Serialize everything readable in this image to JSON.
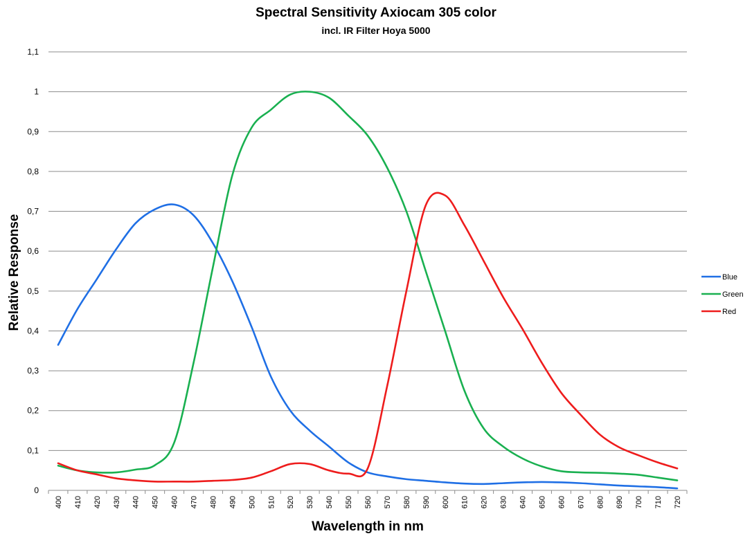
{
  "chart_data": {
    "type": "line",
    "title": "Spectral Sensitivity Axiocam 305 color",
    "subtitle": "incl. IR Filter Hoya 5000",
    "xlabel": "Wavelength in nm",
    "ylabel": "Relative Response",
    "x": [
      400,
      410,
      420,
      430,
      440,
      450,
      460,
      470,
      480,
      490,
      500,
      510,
      520,
      530,
      540,
      550,
      560,
      570,
      580,
      590,
      600,
      610,
      620,
      630,
      640,
      650,
      660,
      670,
      680,
      690,
      700,
      710,
      720
    ],
    "x_tick_labels": [
      "400",
      "410",
      "420",
      "430",
      "440",
      "450",
      "460",
      "470",
      "480",
      "490",
      "500",
      "510",
      "520",
      "530",
      "540",
      "550",
      "560",
      "570",
      "580",
      "590",
      "600",
      "610",
      "620",
      "630",
      "640",
      "650",
      "660",
      "670",
      "680",
      "690",
      "700",
      "710",
      "720"
    ],
    "xlim": [
      400,
      720
    ],
    "ylim": [
      0,
      1.1
    ],
    "y_ticks": [
      0,
      0.1,
      0.2,
      0.3,
      0.4,
      0.5,
      0.6,
      0.7,
      0.8,
      0.9,
      1.0,
      1.1
    ],
    "y_tick_labels": [
      "0",
      "0,1",
      "0,2",
      "0,3",
      "0,4",
      "0,5",
      "0,6",
      "0,7",
      "0,8",
      "0,9",
      "1",
      "1,1"
    ],
    "grid": "horizontal",
    "legend_position": "right",
    "series": [
      {
        "name": "Blue",
        "color": "#1f6fe5",
        "values": [
          0.365,
          0.455,
          0.53,
          0.605,
          0.67,
          0.705,
          0.717,
          0.69,
          0.62,
          0.525,
          0.41,
          0.285,
          0.2,
          0.15,
          0.11,
          0.07,
          0.045,
          0.035,
          0.028,
          0.024,
          0.02,
          0.017,
          0.016,
          0.018,
          0.02,
          0.021,
          0.02,
          0.018,
          0.015,
          0.012,
          0.01,
          0.008,
          0.005
        ]
      },
      {
        "name": "Green",
        "color": "#19b050",
        "values": [
          0.062,
          0.05,
          0.045,
          0.045,
          0.052,
          0.063,
          0.12,
          0.32,
          0.56,
          0.79,
          0.91,
          0.955,
          0.993,
          1.0,
          0.985,
          0.94,
          0.89,
          0.81,
          0.7,
          0.55,
          0.4,
          0.25,
          0.155,
          0.11,
          0.08,
          0.06,
          0.048,
          0.045,
          0.044,
          0.042,
          0.039,
          0.032,
          0.025
        ]
      },
      {
        "name": "Red",
        "color": "#ee1c1c",
        "values": [
          0.068,
          0.05,
          0.04,
          0.03,
          0.025,
          0.022,
          0.022,
          0.022,
          0.024,
          0.026,
          0.032,
          0.048,
          0.066,
          0.066,
          0.05,
          0.042,
          0.055,
          0.26,
          0.5,
          0.715,
          0.74,
          0.665,
          0.575,
          0.485,
          0.405,
          0.32,
          0.245,
          0.19,
          0.14,
          0.108,
          0.088,
          0.07,
          0.055
        ]
      }
    ]
  }
}
